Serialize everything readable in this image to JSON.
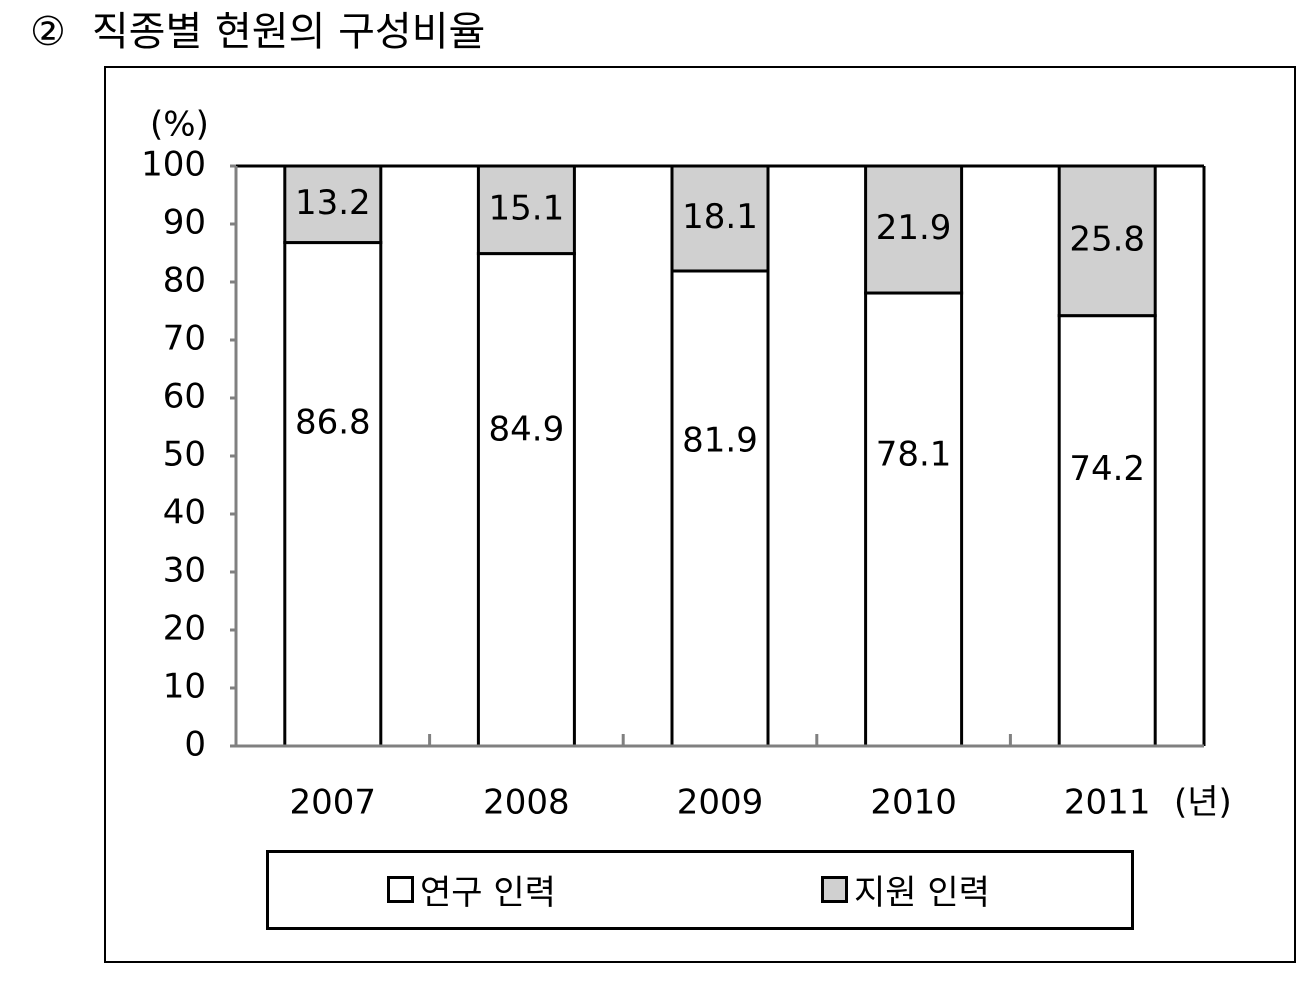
{
  "title": {
    "number": "②",
    "text": "직종별 현원의 구성비율"
  },
  "colors": {
    "research": "#ffffff",
    "support": "#d0d0d0",
    "axis": "#808080",
    "outline": "#000000"
  },
  "chart_data": {
    "type": "bar",
    "stacked": true,
    "categories": [
      "2007",
      "2008",
      "2009",
      "2010",
      "2011"
    ],
    "series": [
      {
        "name": "연구 인력",
        "values": [
          86.8,
          84.9,
          81.9,
          78.1,
          74.2
        ]
      },
      {
        "name": "지원 인력",
        "values": [
          13.2,
          15.1,
          18.1,
          21.9,
          25.8
        ]
      }
    ],
    "y_unit_label": "(%)",
    "x_unit_label": "(년)",
    "ylim": [
      0,
      100
    ],
    "yticks": [
      0,
      10,
      20,
      30,
      40,
      50,
      60,
      70,
      80,
      90,
      100
    ],
    "grid": false,
    "legend_position": "bottom"
  }
}
